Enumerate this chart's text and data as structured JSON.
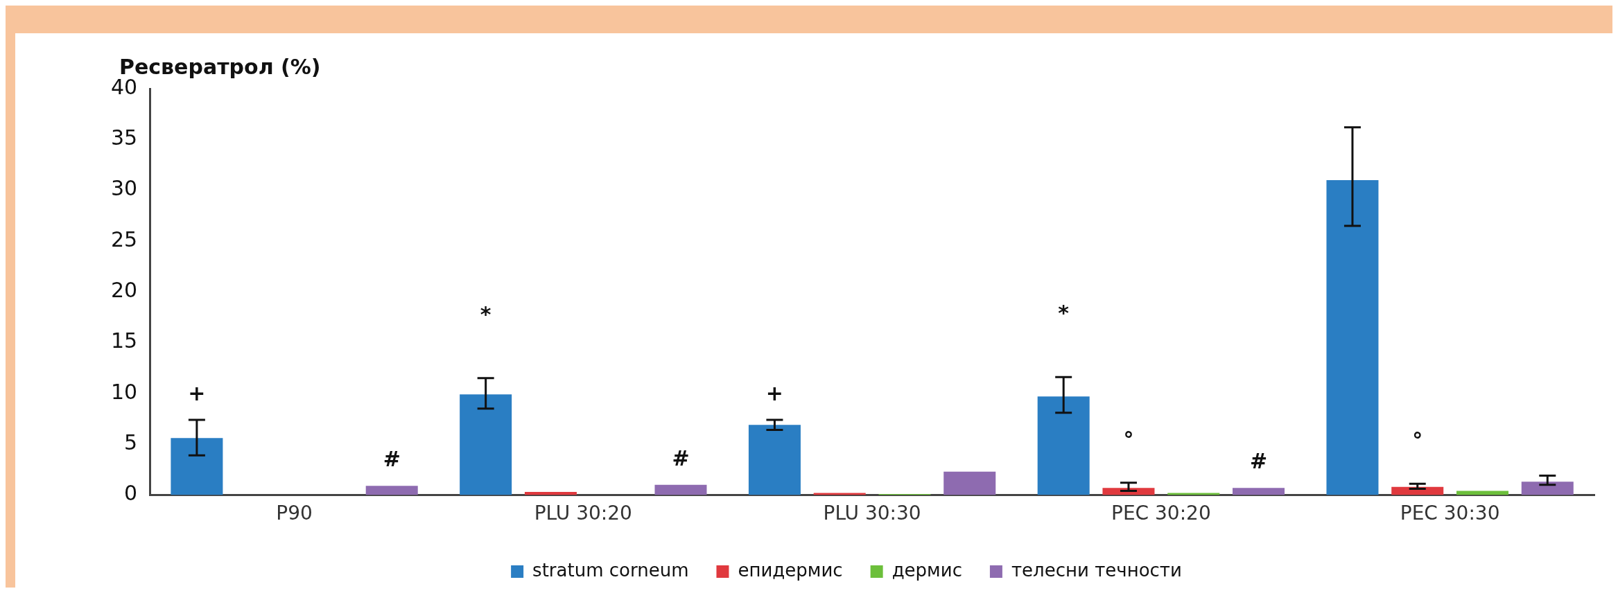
{
  "chart_data": {
    "type": "bar",
    "ylabel": "Ресвератрол (%)",
    "categories": [
      "P90",
      "PLU 30:20",
      "PLU 30:30",
      "PEC 30:20",
      "PEC 30:30"
    ],
    "series": [
      {
        "name": "stratum corneum",
        "color": "#2a7ec3",
        "values": [
          5.6,
          9.9,
          6.9,
          9.7,
          31
        ],
        "errors": [
          [
            3.9,
            7.4
          ],
          [
            8.5,
            11.5
          ],
          [
            6.4,
            7.4
          ],
          [
            8.1,
            11.6
          ],
          [
            26.5,
            36.2
          ]
        ]
      },
      {
        "name": "епидермис",
        "color": "#e0393e",
        "values": [
          0,
          0.3,
          0.2,
          0.7,
          0.8
        ],
        "errors": [
          null,
          null,
          null,
          [
            0.4,
            1.2
          ],
          [
            0.6,
            1.1
          ]
        ]
      },
      {
        "name": "дермис",
        "color": "#6cbf3b",
        "values": [
          0,
          0,
          0.1,
          0.2,
          0.4
        ]
      },
      {
        "name": "телесни течности",
        "color": "#8e6bb0",
        "values": [
          0.9,
          1.0,
          2.3,
          0.7,
          1.3
        ],
        "errors": [
          null,
          null,
          null,
          null,
          [
            1.0,
            1.9
          ]
        ]
      }
    ],
    "ylim": [
      0,
      40
    ],
    "yticks": [
      0,
      5,
      10,
      15,
      20,
      25,
      30,
      35,
      40
    ],
    "grid": false,
    "legend": "bottom",
    "annotations": [
      "+",
      "#",
      "*",
      "#",
      "+",
      "*",
      "°",
      "#",
      "°"
    ]
  }
}
